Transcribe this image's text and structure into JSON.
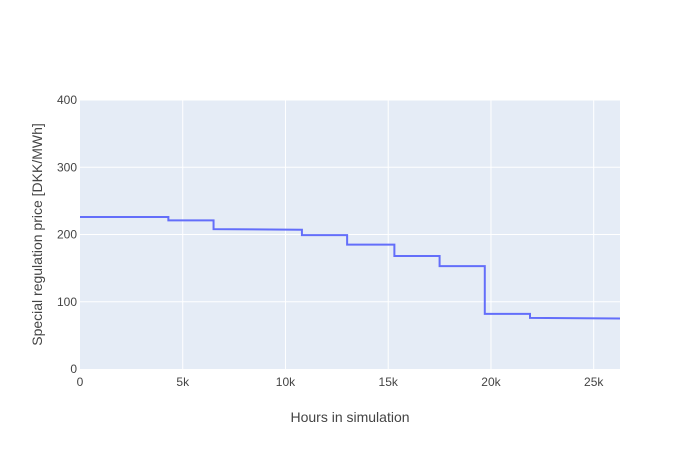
{
  "chart_data": {
    "type": "line",
    "line_shape": "step",
    "title": "",
    "xlabel": "Hours in simulation",
    "ylabel": "Special regulation price [DKK/MWh]",
    "xlim": [
      0,
      26280
    ],
    "ylim": [
      0,
      400
    ],
    "x_ticks": [
      0,
      5000,
      10000,
      15000,
      20000,
      25000
    ],
    "x_tick_labels": [
      "0",
      "5k",
      "10k",
      "15k",
      "20k",
      "25k"
    ],
    "y_ticks": [
      0,
      100,
      200,
      300,
      400
    ],
    "y_tick_labels": [
      "0",
      "100",
      "200",
      "300",
      "400"
    ],
    "grid": true,
    "legend": "none",
    "colors": {
      "plot_bg": "#E5ECF6",
      "grid": "#ffffff",
      "line": "#636EFA",
      "text": "#444444"
    },
    "series": [
      {
        "x": [
          0,
          4300,
          4300,
          6500,
          6500,
          10800,
          10800,
          13000,
          13000,
          15300,
          15300,
          17500,
          17500,
          19700,
          19700,
          21900,
          21900,
          26280
        ],
        "y": [
          226,
          226,
          221,
          221,
          208,
          207,
          199,
          199,
          185,
          185,
          168,
          168,
          153,
          153,
          82,
          82,
          76,
          75
        ]
      }
    ]
  }
}
